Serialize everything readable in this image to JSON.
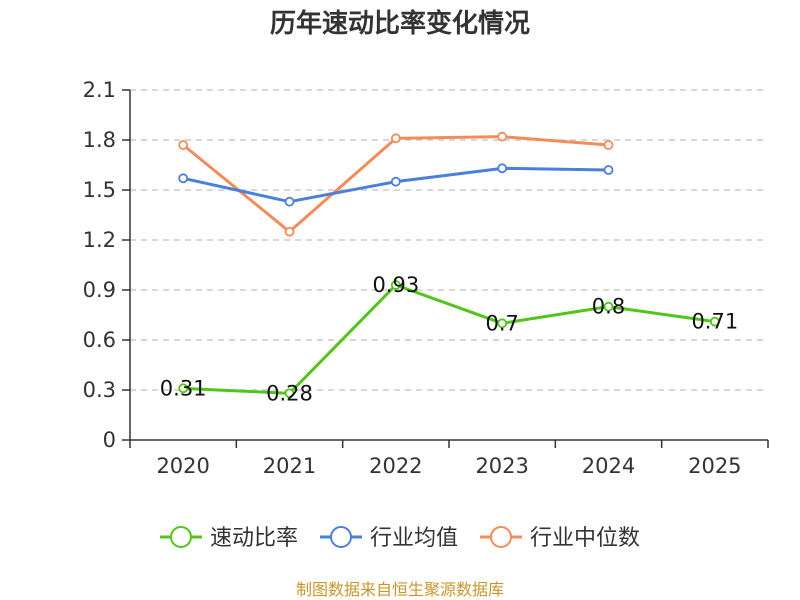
{
  "chart_data": {
    "type": "line",
    "title": "历年速动比率变化情况",
    "categories": [
      "2020",
      "2021",
      "2022",
      "2023",
      "2024",
      "2025"
    ],
    "ylim": [
      0,
      2.1
    ],
    "yticks": [
      "0",
      "0.3",
      "0.6",
      "0.9",
      "1.2",
      "1.5",
      "1.8",
      "2.1"
    ],
    "series": [
      {
        "name": "速动比率",
        "color": "#52c41a",
        "values": [
          0.31,
          0.28,
          0.93,
          0.7,
          0.8,
          0.71
        ],
        "labels": [
          "0.31",
          "0.28",
          "0.93",
          "0.7",
          "0.8",
          "0.71"
        ]
      },
      {
        "name": "行业均值",
        "color": "#4a7fdc",
        "values": [
          1.57,
          1.43,
          1.55,
          1.63,
          1.62,
          null
        ]
      },
      {
        "name": "行业中位数",
        "color": "#f28c5a",
        "values": [
          1.77,
          1.25,
          1.81,
          1.82,
          1.77,
          null
        ]
      }
    ],
    "legend_position": "bottom",
    "source": "制图数据来自恒生聚源数据库"
  }
}
